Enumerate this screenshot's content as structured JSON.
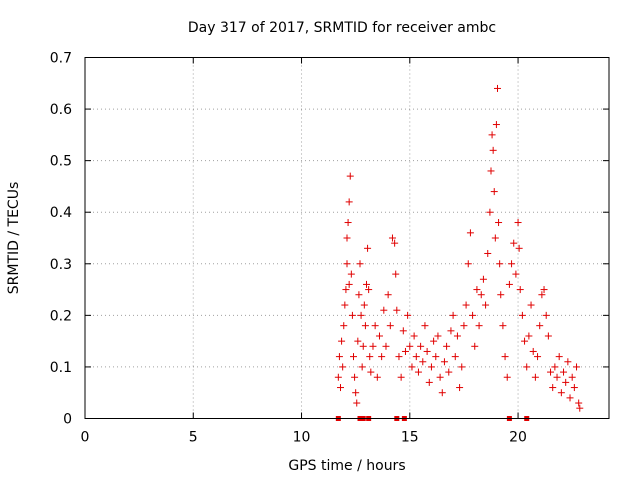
{
  "chart_data": {
    "type": "scatter",
    "title": "Day 317 of 2017, SRMTID for receiver ambc",
    "xlabel": "GPS time / hours",
    "ylabel": "SRMTID / TECUs",
    "xlim": [
      0,
      24.2
    ],
    "ylim": [
      0,
      0.7
    ],
    "xticks": [
      0,
      5,
      10,
      15,
      20
    ],
    "yticks": [
      0,
      0.1,
      0.2,
      0.3,
      0.4,
      0.5,
      0.6,
      0.7
    ],
    "xtick_labels": [
      "0",
      "5",
      "10",
      "15",
      "20"
    ],
    "ytick_labels": [
      "0",
      "0.1",
      "0.2",
      "0.3",
      "0.4",
      "0.5",
      "0.6",
      "0.7"
    ],
    "grid": true,
    "marker": "plus",
    "color": "#e00000",
    "x_data_range": [
      11.6,
      22.9
    ],
    "series": [
      {
        "name": "SRMTID",
        "points": [
          [
            11.7,
            0.08
          ],
          [
            11.75,
            0.12
          ],
          [
            11.8,
            0.06
          ],
          [
            11.85,
            0.15
          ],
          [
            11.9,
            0.1
          ],
          [
            11.95,
            0.18
          ],
          [
            12.0,
            0.22
          ],
          [
            12.05,
            0.25
          ],
          [
            12.1,
            0.3
          ],
          [
            12.15,
            0.38
          ],
          [
            12.2,
            0.42
          ],
          [
            12.25,
            0.47
          ],
          [
            12.1,
            0.35
          ],
          [
            12.2,
            0.26
          ],
          [
            12.3,
            0.28
          ],
          [
            12.35,
            0.2
          ],
          [
            12.4,
            0.12
          ],
          [
            12.45,
            0.08
          ],
          [
            12.5,
            0.05
          ],
          [
            12.55,
            0.03
          ],
          [
            12.6,
            0.15
          ],
          [
            12.65,
            0.24
          ],
          [
            12.7,
            0.3
          ],
          [
            12.75,
            0.2
          ],
          [
            12.8,
            0.1
          ],
          [
            12.85,
            0.14
          ],
          [
            12.9,
            0.22
          ],
          [
            12.95,
            0.18
          ],
          [
            13.0,
            0.26
          ],
          [
            13.05,
            0.33
          ],
          [
            13.1,
            0.25
          ],
          [
            13.15,
            0.12
          ],
          [
            13.2,
            0.09
          ],
          [
            13.3,
            0.14
          ],
          [
            13.4,
            0.18
          ],
          [
            13.5,
            0.08
          ],
          [
            13.6,
            0.16
          ],
          [
            13.7,
            0.12
          ],
          [
            13.8,
            0.21
          ],
          [
            13.9,
            0.14
          ],
          [
            14.0,
            0.24
          ],
          [
            14.1,
            0.18
          ],
          [
            14.2,
            0.35
          ],
          [
            14.3,
            0.34
          ],
          [
            14.35,
            0.28
          ],
          [
            14.4,
            0.21
          ],
          [
            14.5,
            0.12
          ],
          [
            14.6,
            0.08
          ],
          [
            14.7,
            0.17
          ],
          [
            14.8,
            0.13
          ],
          [
            14.9,
            0.2
          ],
          [
            15.0,
            0.14
          ],
          [
            15.1,
            0.1
          ],
          [
            15.2,
            0.16
          ],
          [
            15.3,
            0.12
          ],
          [
            15.4,
            0.09
          ],
          [
            15.5,
            0.14
          ],
          [
            15.6,
            0.11
          ],
          [
            15.7,
            0.18
          ],
          [
            15.8,
            0.13
          ],
          [
            15.9,
            0.07
          ],
          [
            16.0,
            0.1
          ],
          [
            16.1,
            0.15
          ],
          [
            16.2,
            0.12
          ],
          [
            16.3,
            0.16
          ],
          [
            16.4,
            0.08
          ],
          [
            16.5,
            0.05
          ],
          [
            16.6,
            0.11
          ],
          [
            16.7,
            0.14
          ],
          [
            16.8,
            0.09
          ],
          [
            16.9,
            0.17
          ],
          [
            17.0,
            0.2
          ],
          [
            17.1,
            0.12
          ],
          [
            17.2,
            0.16
          ],
          [
            17.3,
            0.06
          ],
          [
            17.4,
            0.1
          ],
          [
            17.5,
            0.18
          ],
          [
            17.6,
            0.22
          ],
          [
            17.7,
            0.3
          ],
          [
            17.8,
            0.36
          ],
          [
            17.9,
            0.2
          ],
          [
            18.0,
            0.14
          ],
          [
            18.1,
            0.25
          ],
          [
            18.2,
            0.18
          ],
          [
            18.3,
            0.24
          ],
          [
            18.4,
            0.27
          ],
          [
            18.5,
            0.22
          ],
          [
            18.6,
            0.32
          ],
          [
            18.7,
            0.4
          ],
          [
            18.75,
            0.48
          ],
          [
            18.8,
            0.55
          ],
          [
            18.85,
            0.52
          ],
          [
            18.9,
            0.44
          ],
          [
            18.95,
            0.35
          ],
          [
            19.0,
            0.57
          ],
          [
            19.05,
            0.64
          ],
          [
            19.1,
            0.38
          ],
          [
            19.15,
            0.3
          ],
          [
            19.2,
            0.24
          ],
          [
            19.3,
            0.18
          ],
          [
            19.4,
            0.12
          ],
          [
            19.5,
            0.08
          ],
          [
            19.6,
            0.26
          ],
          [
            19.7,
            0.3
          ],
          [
            19.8,
            0.34
          ],
          [
            19.9,
            0.28
          ],
          [
            20.0,
            0.38
          ],
          [
            20.05,
            0.33
          ],
          [
            20.1,
            0.25
          ],
          [
            20.2,
            0.2
          ],
          [
            20.3,
            0.15
          ],
          [
            20.4,
            0.1
          ],
          [
            20.5,
            0.16
          ],
          [
            20.6,
            0.22
          ],
          [
            20.7,
            0.13
          ],
          [
            20.8,
            0.08
          ],
          [
            20.9,
            0.12
          ],
          [
            21.0,
            0.18
          ],
          [
            21.1,
            0.24
          ],
          [
            21.2,
            0.25
          ],
          [
            21.3,
            0.2
          ],
          [
            21.4,
            0.16
          ],
          [
            21.5,
            0.09
          ],
          [
            21.6,
            0.06
          ],
          [
            21.7,
            0.1
          ],
          [
            21.8,
            0.08
          ],
          [
            21.9,
            0.12
          ],
          [
            22.0,
            0.05
          ],
          [
            22.1,
            0.09
          ],
          [
            22.2,
            0.07
          ],
          [
            22.3,
            0.11
          ],
          [
            22.4,
            0.04
          ],
          [
            22.5,
            0.08
          ],
          [
            22.6,
            0.06
          ],
          [
            22.7,
            0.1
          ],
          [
            22.8,
            0.03
          ],
          [
            22.85,
            0.02
          ]
        ]
      }
    ],
    "zero_markers": [
      11.7,
      12.7,
      12.85,
      13.1,
      14.4,
      14.75,
      19.6,
      20.4
    ]
  }
}
